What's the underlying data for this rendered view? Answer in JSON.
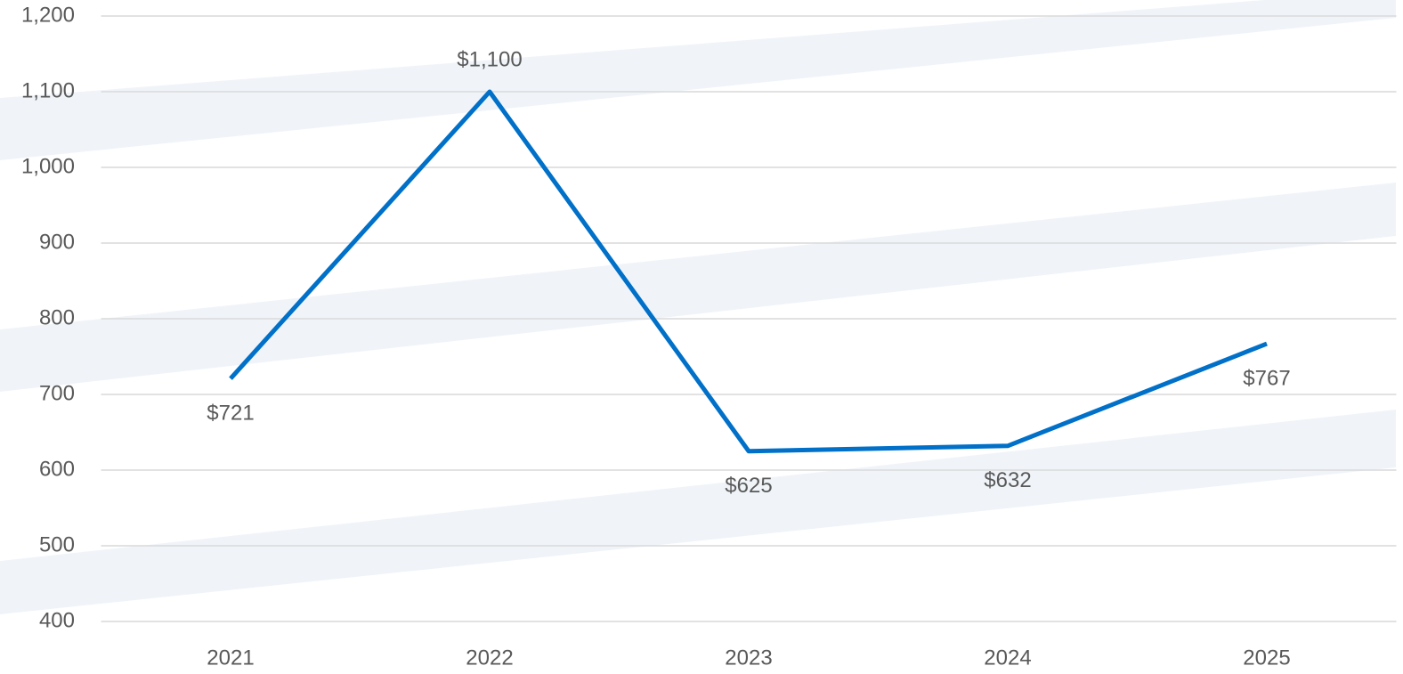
{
  "chart_data": {
    "type": "line",
    "categories": [
      "2021",
      "2022",
      "2023",
      "2024",
      "2025"
    ],
    "series": [
      {
        "color": "#0070c8",
        "values": [
          721,
          1100,
          625,
          632,
          767
        ],
        "value_labels": [
          "$721",
          "$1,100",
          "$625",
          "$632",
          "$767"
        ]
      }
    ],
    "ylim": [
      400,
      1200
    ],
    "yticks": [
      400,
      500,
      600,
      700,
      800,
      900,
      {
        "value": 1000,
        "label": "1,000"
      },
      {
        "value": 1100,
        "label": "1,100"
      },
      {
        "value": 1200,
        "label": "1,200"
      }
    ],
    "grid": true
  }
}
